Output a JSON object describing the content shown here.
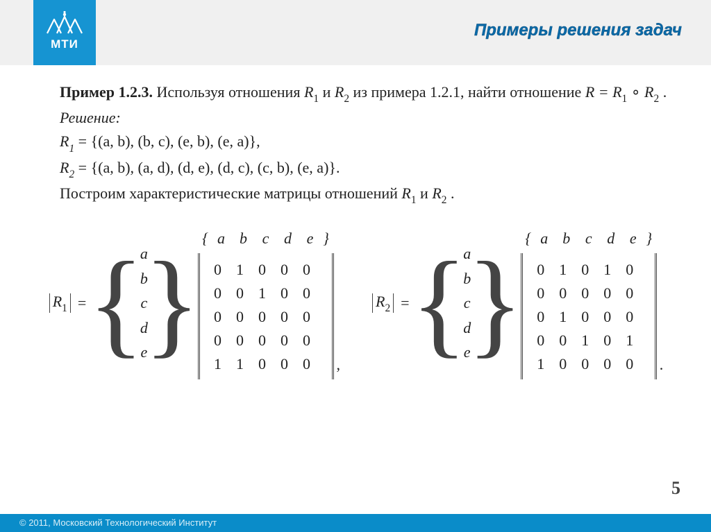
{
  "logo_text": "МТИ",
  "header_title": "Примеры решения  задач",
  "example_label": "Пример 1.2.3.",
  "para1_a": " Используя отношения ",
  "R": "R",
  "and_word": " и ",
  "para1_b": " из примера 1.2.1, найти отношение ",
  "eq_R": "R = R",
  "compose": " ∘ ",
  "period": " .",
  "solution_label": "Решение:",
  "set1_lhs": "R",
  "set1_val": " = {(a, b), (b, c), (e, b), (e, a)},",
  "set2_lhs": "R",
  "set2_val": " = {(a, b), (a, d), (d, e), (d, c), (c, b), (e, a)}.",
  "build_text_a": "Построим характеристические матрицы отношений ",
  "build_text_b": " .",
  "sub1": "1",
  "sub2": "2",
  "col_headers": [
    "a",
    "b",
    "c",
    "d",
    "e"
  ],
  "row_labels": [
    "a",
    "b",
    "c",
    "d",
    "e"
  ],
  "matrix1": {
    "name": "R",
    "sub": "1",
    "rows": [
      [
        "0",
        "1",
        "0",
        "0",
        "0"
      ],
      [
        "0",
        "0",
        "1",
        "0",
        "0"
      ],
      [
        "0",
        "0",
        "0",
        "0",
        "0"
      ],
      [
        "0",
        "0",
        "0",
        "0",
        "0"
      ],
      [
        "1",
        "1",
        "0",
        "0",
        "0"
      ]
    ],
    "trail": ","
  },
  "matrix2": {
    "name": "R",
    "sub": "2",
    "rows": [
      [
        "0",
        "1",
        "0",
        "1",
        "0"
      ],
      [
        "0",
        "0",
        "0",
        "0",
        "0"
      ],
      [
        "0",
        "1",
        "0",
        "0",
        "0"
      ],
      [
        "0",
        "0",
        "1",
        "0",
        "1"
      ],
      [
        "1",
        "0",
        "0",
        "0",
        "0"
      ]
    ],
    "trail": "."
  },
  "equals": "=",
  "lbrace_open": "{",
  "rbrace_close": "}",
  "page_number": "5",
  "footer_text": "© 2011, Московский Технологический Институт"
}
